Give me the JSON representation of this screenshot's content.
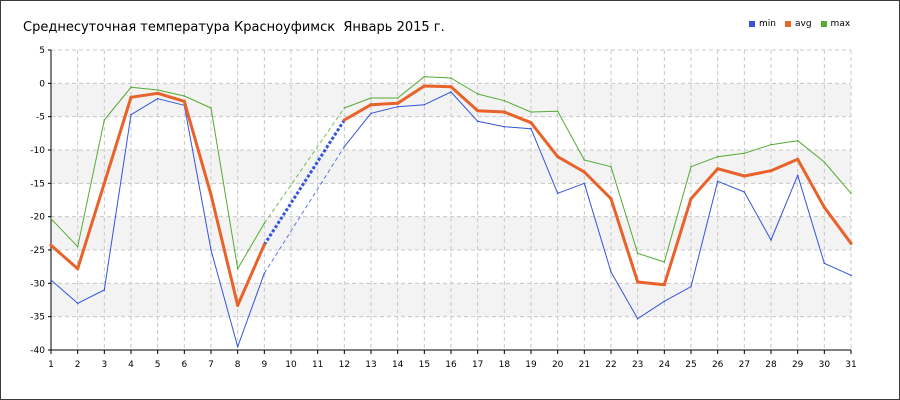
{
  "chart_data": {
    "type": "line",
    "title": "Среднесуточная температура Красноуфимск  Январь 2015 г.",
    "xlabel": "",
    "ylabel": "",
    "x": [
      1,
      2,
      3,
      4,
      5,
      6,
      7,
      8,
      9,
      10,
      11,
      12,
      13,
      14,
      15,
      16,
      17,
      18,
      19,
      20,
      21,
      22,
      23,
      24,
      25,
      26,
      27,
      28,
      29,
      30,
      31
    ],
    "xlim": [
      1,
      31
    ],
    "ylim": [
      -40,
      5
    ],
    "y_ticks": [
      5,
      0,
      -5,
      -10,
      -15,
      -20,
      -25,
      -30,
      -35,
      -40
    ],
    "grid": true,
    "legend_position": "top-right",
    "series": [
      {
        "name": "min",
        "color": "#3355dd",
        "values": [
          -29.5,
          -33,
          -31,
          -4.7,
          -2.3,
          -3.3,
          -25,
          -39.5,
          -28.5,
          null,
          null,
          -9.5,
          -4.5,
          -3.5,
          -3.2,
          -1.3,
          -5.7,
          -6.5,
          -6.8,
          -16.5,
          -15,
          -28.3,
          -35.3,
          -32.7,
          -30.5,
          -14.7,
          -16.3,
          -23.5,
          -13.8,
          -27,
          -28.8
        ]
      },
      {
        "name": "avg",
        "color": "#e8622a",
        "values": [
          -24.3,
          -27.8,
          -15,
          -2.1,
          -1.5,
          -2.7,
          -16.7,
          -33.3,
          -24.2,
          null,
          null,
          -5.5,
          -3.2,
          -3,
          -0.4,
          -0.5,
          -4.1,
          -4.3,
          -5.9,
          -11,
          -13.3,
          -17.3,
          -29.8,
          -30.2,
          -17.3,
          -12.8,
          -13.9,
          -13.1,
          -11.4,
          -18.6,
          -24
        ]
      },
      {
        "name": "max",
        "color": "#55aa33",
        "values": [
          -20.3,
          -24.5,
          -5.5,
          -0.6,
          -1,
          -1.9,
          -3.7,
          -27.8,
          -21,
          null,
          null,
          -3.7,
          -2.2,
          -2.2,
          1,
          0.8,
          -1.6,
          -2.6,
          -4.3,
          -4.2,
          -11.5,
          -12.5,
          -25.5,
          -26.8,
          -12.5,
          -11,
          -10.5,
          -9.2,
          -8.6,
          -11.8,
          -16.5
        ]
      }
    ],
    "gap_interpolation": {
      "from_x": 9,
      "to_x": 12,
      "style": "dashed"
    }
  }
}
